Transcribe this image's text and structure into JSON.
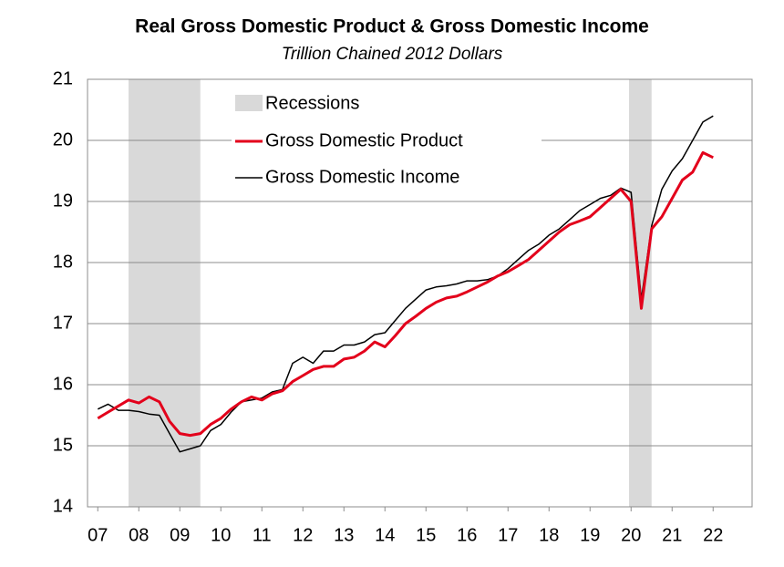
{
  "chart_data": {
    "type": "line",
    "title": "Real Gross Domestic Product & Gross Domestic Income",
    "subtitle": "Trillion Chained 2012 Dollars",
    "x": [
      7,
      7.25,
      7.5,
      7.75,
      8,
      8.25,
      8.5,
      8.75,
      9,
      9.25,
      9.5,
      9.75,
      10,
      10.25,
      10.5,
      10.75,
      11,
      11.25,
      11.5,
      11.75,
      12,
      12.25,
      12.5,
      12.75,
      13,
      13.25,
      13.5,
      13.75,
      14,
      14.25,
      14.5,
      14.75,
      15,
      15.25,
      15.5,
      15.75,
      16,
      16.25,
      16.5,
      16.75,
      17,
      17.25,
      17.5,
      17.75,
      18,
      18.25,
      18.5,
      18.75,
      19,
      19.25,
      19.5,
      19.75,
      20,
      20.25,
      20.5,
      20.75,
      21,
      21.25,
      21.5,
      21.75,
      22
    ],
    "series": [
      {
        "name": "Gross Domestic Product",
        "color": "#e3001b",
        "values": [
          15.45,
          15.55,
          15.65,
          15.75,
          15.7,
          15.8,
          15.72,
          15.4,
          15.2,
          15.17,
          15.2,
          15.35,
          15.45,
          15.6,
          15.72,
          15.8,
          15.75,
          15.85,
          15.9,
          16.05,
          16.15,
          16.25,
          16.3,
          16.3,
          16.42,
          16.45,
          16.55,
          16.7,
          16.62,
          16.8,
          17.0,
          17.12,
          17.25,
          17.35,
          17.42,
          17.45,
          17.52,
          17.6,
          17.68,
          17.78,
          17.85,
          17.95,
          18.05,
          18.2,
          18.35,
          18.5,
          18.62,
          18.68,
          18.75,
          18.9,
          19.05,
          19.2,
          19.0,
          17.25,
          18.55,
          18.75,
          19.05,
          19.35,
          19.48,
          19.8,
          19.72
        ]
      },
      {
        "name": "Gross Domestic Income",
        "color": "#000000",
        "values": [
          15.6,
          15.68,
          15.58,
          15.58,
          15.56,
          15.52,
          15.5,
          15.2,
          14.9,
          14.95,
          15.0,
          15.25,
          15.35,
          15.55,
          15.72,
          15.75,
          15.78,
          15.88,
          15.92,
          16.35,
          16.45,
          16.35,
          16.55,
          16.55,
          16.65,
          16.65,
          16.7,
          16.82,
          16.85,
          17.05,
          17.25,
          17.4,
          17.55,
          17.6,
          17.62,
          17.65,
          17.7,
          17.7,
          17.72,
          17.78,
          17.9,
          18.05,
          18.2,
          18.3,
          18.45,
          18.55,
          18.7,
          18.85,
          18.95,
          19.05,
          19.1,
          19.22,
          19.15,
          17.4,
          18.6,
          19.2,
          19.5,
          19.7,
          20.0,
          20.3,
          20.4
        ]
      }
    ],
    "shaded_regions": {
      "name": "Recessions",
      "color": "#d9d9d9",
      "ranges": [
        [
          7.75,
          9.5
        ],
        [
          19.95,
          20.5
        ]
      ]
    },
    "xlim": [
      6.75,
      22.95
    ],
    "xticks": [
      {
        "value": 7,
        "label": "07"
      },
      {
        "value": 8,
        "label": "08"
      },
      {
        "value": 9,
        "label": "09"
      },
      10,
      11,
      12,
      13,
      14,
      15,
      16,
      17,
      18,
      19,
      20,
      21,
      22
    ],
    "ylim": [
      14,
      21
    ],
    "yticks": [
      14,
      15,
      16,
      17,
      18,
      19,
      20,
      21
    ],
    "grid": true,
    "legend": "upper left"
  }
}
